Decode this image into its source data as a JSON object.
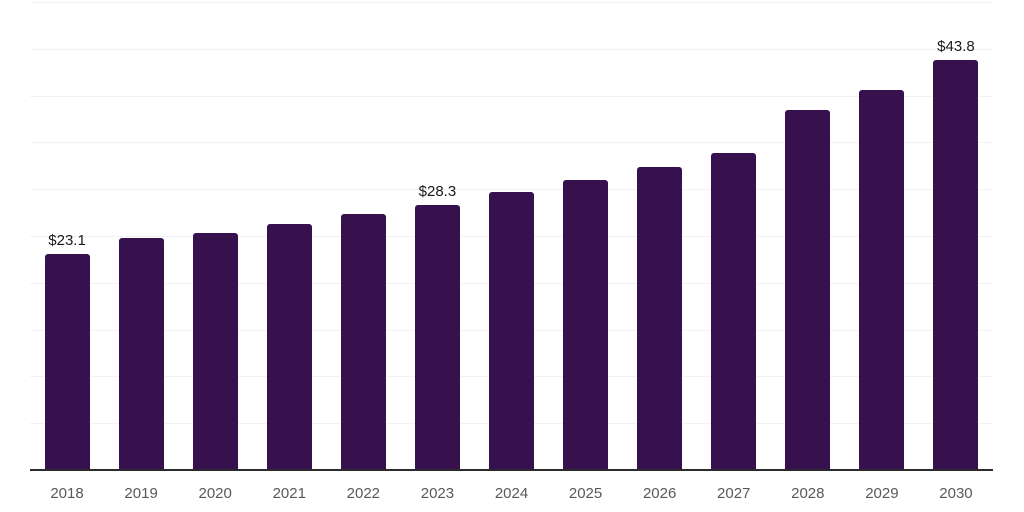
{
  "chart_data": {
    "type": "bar",
    "title": "",
    "xlabel": "",
    "ylabel": "",
    "categories": [
      "2018",
      "2019",
      "2020",
      "2021",
      "2022",
      "2023",
      "2024",
      "2025",
      "2026",
      "2027",
      "2028",
      "2029",
      "2030"
    ],
    "values": [
      23.1,
      24.8,
      25.3,
      26.3,
      27.3,
      28.3,
      29.7,
      31.0,
      32.4,
      33.9,
      38.5,
      40.6,
      43.8
    ],
    "data_labels": [
      "$23.1",
      "",
      "",
      "",
      "",
      "$28.3",
      "",
      "",
      "",
      "",
      "",
      "",
      "$43.8"
    ],
    "ylim": [
      0,
      50
    ],
    "gridline_step": 5,
    "grid": true,
    "legend_position": "none",
    "colors": {
      "bar": "#36114d",
      "axis_line": "#2b2b2b",
      "gridline": "#f2f2f2",
      "tick_label": "#58595b",
      "data_label": "#1a1a1a",
      "background": "#ffffff"
    }
  }
}
